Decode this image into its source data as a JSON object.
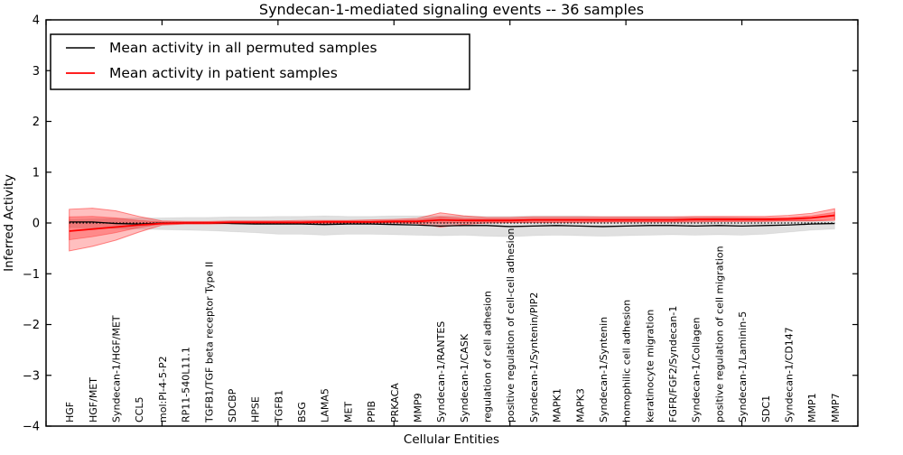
{
  "chart_data": {
    "type": "line",
    "title": "Syndecan-1-mediated signaling events -- 36 samples",
    "xlabel": "Cellular Entities",
    "ylabel": "Inferred Activity",
    "ylim": [
      -4,
      4
    ],
    "xlim": [
      0,
      35
    ],
    "yticks": [
      -4,
      -3,
      -2,
      -1,
      0,
      1,
      2,
      3,
      4
    ],
    "ytick_labels": [
      "−4",
      "−3",
      "−2",
      "−1",
      "0",
      "1",
      "2",
      "3",
      "4"
    ],
    "xticks": [
      0,
      5,
      10,
      15,
      20,
      25,
      30,
      35
    ],
    "grid": false,
    "legend_position": "upper left",
    "zero_line": true,
    "categories": [
      "HGF",
      "HGF/MET",
      "Syndecan-1/HGF/MET",
      "CCL5",
      "mol:PI-4-5-P2",
      "RP11-540L11.1",
      "TGFB1/TGF beta receptor Type II",
      "SDCBP",
      "HPSE",
      "TGFB1",
      "BSG",
      "LAMA5",
      "MET",
      "PPIB",
      "PRKACA",
      "MMP9",
      "Syndecan-1/RANTES",
      "Syndecan-1/CASK",
      "regulation of cell adhesion",
      "positive regulation of cell-cell adhesion",
      "Syndecan-1/Syntenin/PIP2",
      "MAPK1",
      "MAPK3",
      "Syndecan-1/Syntenin",
      "homophilic cell adhesion",
      "keratinocyte migration",
      "FGFR/FGF2/Syndecan-1",
      "Syndecan-1/Collagen",
      "positive regulation of cell migration",
      "Syndecan-1/Laminin-5",
      "SDC1",
      "Syndecan-1/CD147",
      "MMP1",
      "MMP7"
    ],
    "series": [
      {
        "name": "Mean activity in all permuted samples",
        "color": "#000000",
        "values": [
          0.02,
          0.02,
          -0.01,
          -0.02,
          0,
          0,
          0,
          -0.01,
          -0.02,
          -0.02,
          -0.02,
          -0.03,
          -0.02,
          -0.02,
          -0.03,
          -0.04,
          -0.06,
          -0.05,
          -0.05,
          -0.07,
          -0.06,
          -0.05,
          -0.06,
          -0.07,
          -0.06,
          -0.05,
          -0.05,
          -0.06,
          -0.05,
          -0.06,
          -0.05,
          -0.04,
          -0.02,
          -0.01
        ],
        "bands": [
          {
            "label": "permuted range",
            "fill": "rgba(0,0,0,0.12)",
            "stroke": "rgba(0,0,0,0.06)",
            "lower": [
              -0.09,
              -0.1,
              -0.11,
              -0.12,
              -0.13,
              -0.14,
              -0.15,
              -0.17,
              -0.19,
              -0.22,
              -0.22,
              -0.24,
              -0.22,
              -0.22,
              -0.23,
              -0.24,
              -0.25,
              -0.24,
              -0.26,
              -0.27,
              -0.25,
              -0.24,
              -0.25,
              -0.26,
              -0.25,
              -0.24,
              -0.23,
              -0.24,
              -0.23,
              -0.24,
              -0.22,
              -0.18,
              -0.14,
              -0.12
            ],
            "upper": [
              0.07,
              0.08,
              0.09,
              0.1,
              0.1,
              0.11,
              0.11,
              0.12,
              0.12,
              0.13,
              0.13,
              0.14,
              0.13,
              0.13,
              0.14,
              0.14,
              0.14,
              0.14,
              0.13,
              0.13,
              0.14,
              0.14,
              0.14,
              0.13,
              0.13,
              0.13,
              0.13,
              0.12,
              0.12,
              0.11,
              0.1,
              0.08,
              0.05,
              0.03
            ]
          }
        ]
      },
      {
        "name": "Mean activity in patient samples",
        "color": "#ff0000",
        "values": [
          -0.16,
          -0.12,
          -0.08,
          -0.04,
          -0.01,
          0,
          0,
          0.01,
          0.01,
          0.01,
          0.01,
          0.02,
          0.02,
          0.02,
          0.03,
          0.03,
          0.06,
          0.05,
          0.05,
          0.05,
          0.06,
          0.06,
          0.06,
          0.06,
          0.06,
          0.06,
          0.06,
          0.07,
          0.07,
          0.07,
          0.07,
          0.08,
          0.1,
          0.15
        ],
        "bands": [
          {
            "label": "patient range outer",
            "fill": "rgba(255,0,0,0.25)",
            "stroke": "rgba(255,40,40,0.55)",
            "lower": [
              -0.55,
              -0.46,
              -0.34,
              -0.18,
              -0.04,
              -0.02,
              -0.02,
              -0.01,
              -0.01,
              -0.01,
              -0.01,
              -0.01,
              0,
              0,
              0,
              -0.01,
              -0.08,
              -0.03,
              0,
              0.01,
              0.01,
              0.01,
              0.01,
              0.02,
              0.02,
              0.02,
              0.02,
              0.02,
              0.03,
              0.03,
              0.03,
              0.04,
              0.04,
              0.05
            ],
            "upper": [
              0.27,
              0.29,
              0.24,
              0.13,
              0.04,
              0.03,
              0.03,
              0.04,
              0.04,
              0.04,
              0.05,
              0.05,
              0.05,
              0.06,
              0.07,
              0.09,
              0.2,
              0.14,
              0.11,
              0.11,
              0.12,
              0.12,
              0.12,
              0.12,
              0.12,
              0.12,
              0.12,
              0.13,
              0.13,
              0.13,
              0.13,
              0.15,
              0.19,
              0.28
            ]
          },
          {
            "label": "patient range inner",
            "fill": "rgba(255,0,0,0.28)",
            "stroke": "rgba(255,0,0,0.30)",
            "lower": [
              -0.33,
              -0.27,
              -0.19,
              -0.09,
              -0.02,
              -0.01,
              -0.01,
              0,
              0,
              0,
              0,
              0.01,
              0.01,
              0.01,
              0.01,
              0.01,
              0,
              0.01,
              0.02,
              0.02,
              0.03,
              0.03,
              0.03,
              0.03,
              0.03,
              0.03,
              0.03,
              0.04,
              0.04,
              0.04,
              0.04,
              0.05,
              0.05,
              0.07
            ],
            "upper": [
              0.12,
              0.13,
              0.1,
              0.05,
              0.02,
              0.02,
              0.02,
              0.03,
              0.03,
              0.03,
              0.03,
              0.04,
              0.04,
              0.04,
              0.05,
              0.06,
              0.12,
              0.09,
              0.08,
              0.08,
              0.09,
              0.09,
              0.09,
              0.09,
              0.09,
              0.09,
              0.09,
              0.1,
              0.1,
              0.1,
              0.1,
              0.11,
              0.14,
              0.21
            ]
          }
        ]
      }
    ]
  }
}
